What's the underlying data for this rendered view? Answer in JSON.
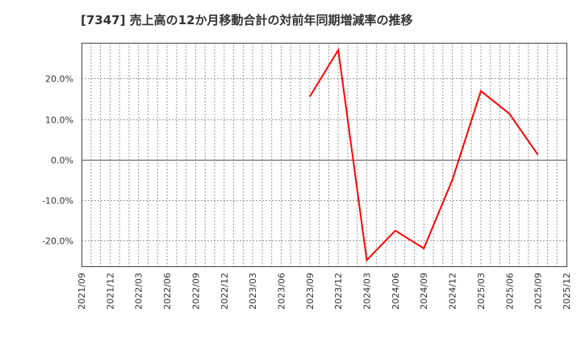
{
  "title": "[7347]  売上高の12か月移動合計の対前年同期増減率の推移",
  "chart_data": {
    "type": "line",
    "title": "[7347]  売上高の12か月移動合計の対前年同期増減率の推移",
    "xlabel": "",
    "ylabel": "",
    "x_ticks": [
      "2021/09",
      "2021/12",
      "2022/03",
      "2022/06",
      "2022/09",
      "2022/12",
      "2023/03",
      "2023/06",
      "2023/09",
      "2023/12",
      "2024/03",
      "2024/06",
      "2024/09",
      "2024/12",
      "2025/03",
      "2025/06",
      "2025/09",
      "2025/12"
    ],
    "y_ticks": [
      "20.0%",
      "10.0%",
      "0.0%",
      "-10.0%",
      "-20.0%"
    ],
    "y_tick_values": [
      20,
      10,
      0,
      -10,
      -20
    ],
    "ylim": [
      -26.3,
      28.8
    ],
    "grid": true,
    "legend": "none",
    "series": [
      {
        "name": "対前年同期増減率",
        "color": "#ff0000",
        "x": [
          "2023/09",
          "2023/12",
          "2024/03",
          "2024/06",
          "2024/09",
          "2024/12",
          "2025/03",
          "2025/06",
          "2025/09"
        ],
        "values": [
          15.5,
          27.0,
          -24.8,
          -17.5,
          -21.9,
          -5.0,
          16.9,
          11.3,
          1.2
        ]
      }
    ]
  }
}
